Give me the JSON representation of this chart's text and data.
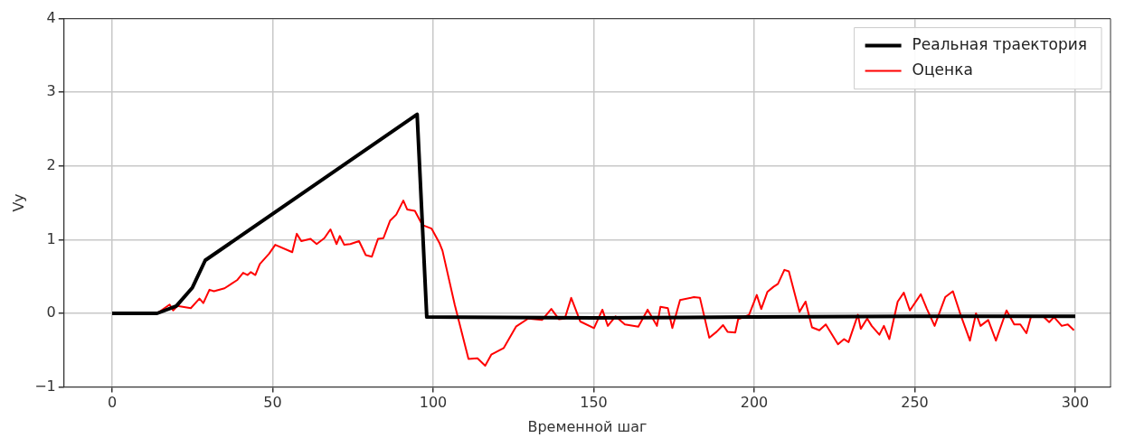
{
  "chart_data": {
    "type": "line",
    "xlabel": "Временной шаг",
    "ylabel": "Vy",
    "xlim": [
      -15,
      311
    ],
    "xticks": [
      0,
      50,
      100,
      150,
      200,
      250,
      300
    ],
    "ylim": [
      -1,
      4
    ],
    "yticks": [
      {
        "value": -1,
        "label": "−1"
      },
      0,
      1,
      2,
      3,
      4
    ],
    "grid": true,
    "legend": "top right",
    "series": [
      {
        "name": "Реальная траектория",
        "color": "#000000",
        "x": [
          0,
          14,
          20,
          25,
          29,
          95,
          98,
          150,
          200,
          250,
          300
        ],
        "values": [
          0,
          0,
          0.1,
          0.35,
          0.72,
          2.7,
          -0.05,
          -0.06,
          -0.05,
          -0.04,
          -0.04
        ]
      },
      {
        "name": "Оценка",
        "color": "#ff0000",
        "x": [
          0,
          14,
          17.9,
          19,
          20.3,
          24.5,
          27.2,
          28.4,
          30.3,
          31.7,
          35,
          38.9,
          40.8,
          42.2,
          43.2,
          44.6,
          46,
          48.9,
          50.8,
          56.1,
          57.5,
          58.9,
          61.8,
          63.7,
          66.1,
          68,
          69.9,
          70.9,
          72.3,
          74.2,
          76.9,
          79,
          80.9,
          82.8,
          84.5,
          86.6,
          88.5,
          90.7,
          91.9,
          94.3,
          96.6,
          99.5,
          101.9,
          102.9,
          106.7,
          111,
          113.8,
          116.2,
          118.1,
          122,
          125.8,
          129.6,
          133.9,
          136.8,
          139.2,
          141,
          143,
          145.8,
          150.1,
          152.7,
          154.4,
          156.8,
          159.7,
          163.9,
          166.8,
          169.7,
          170.8,
          173.1,
          174.5,
          176.9,
          181.2,
          183.1,
          186,
          188.3,
          190.3,
          191.7,
          194.1,
          195,
          198.4,
          200.8,
          202.2,
          204.1,
          206,
          207.4,
          209.4,
          210.8,
          214.1,
          216,
          218,
          220.3,
          222.3,
          226.1,
          228,
          229.4,
          232.3,
          233.2,
          235.2,
          236.6,
          239,
          240.4,
          242.1,
          244.7,
          246.6,
          248.5,
          251.9,
          253.8,
          256.2,
          259.5,
          261.9,
          264.3,
          267.2,
          269.1,
          270.5,
          272.9,
          275.3,
          278.6,
          281,
          282.9,
          284.8,
          286.2,
          290,
          291.9,
          293.4,
          295.8,
          297.7,
          299.6
        ],
        "values": [
          0,
          0,
          0.12,
          0.04,
          0.1,
          0.07,
          0.2,
          0.14,
          0.32,
          0.3,
          0.34,
          0.45,
          0.55,
          0.52,
          0.56,
          0.52,
          0.67,
          0.81,
          0.93,
          0.83,
          1.08,
          0.98,
          1.01,
          0.94,
          1.02,
          1.14,
          0.94,
          1.05,
          0.93,
          0.94,
          0.98,
          0.79,
          0.77,
          1.01,
          1.02,
          1.26,
          1.34,
          1.53,
          1.41,
          1.39,
          1.2,
          1.15,
          0.96,
          0.85,
          0.12,
          -0.62,
          -0.61,
          -0.71,
          -0.56,
          -0.47,
          -0.18,
          -0.07,
          -0.09,
          0.06,
          -0.08,
          -0.07,
          0.21,
          -0.11,
          -0.2,
          0.05,
          -0.17,
          -0.04,
          -0.15,
          -0.18,
          0.05,
          -0.17,
          0.09,
          0.07,
          -0.2,
          0.18,
          0.22,
          0.21,
          -0.33,
          -0.25,
          -0.16,
          -0.25,
          -0.26,
          -0.08,
          -0.02,
          0.25,
          0.06,
          0.29,
          0.36,
          0.4,
          0.59,
          0.57,
          0.02,
          0.16,
          -0.19,
          -0.23,
          -0.15,
          -0.42,
          -0.35,
          -0.39,
          -0.02,
          -0.21,
          -0.07,
          -0.17,
          -0.29,
          -0.17,
          -0.35,
          0.16,
          0.28,
          0.04,
          0.26,
          0.06,
          -0.17,
          0.22,
          0.3,
          -0.02,
          -0.37,
          0,
          -0.17,
          -0.09,
          -0.37,
          0.04,
          -0.15,
          -0.15,
          -0.27,
          -0.05,
          -0.04,
          -0.12,
          -0.05,
          -0.17,
          -0.15,
          -0.23
        ]
      }
    ]
  }
}
